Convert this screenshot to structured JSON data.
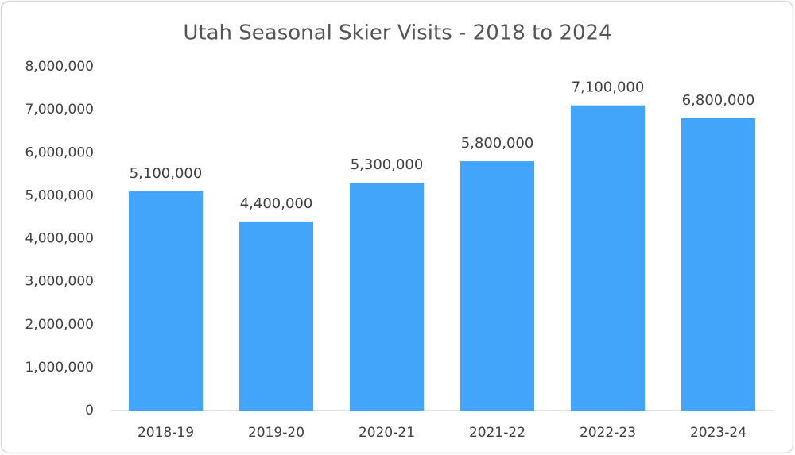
{
  "chart_data": {
    "type": "bar",
    "title": "Utah Seasonal Skier Visits - 2018 to 2024",
    "categories": [
      "2018-19",
      "2019-20",
      "2020-21",
      "2021-22",
      "2022-23",
      "2023-24"
    ],
    "values": [
      5100000,
      4400000,
      5300000,
      5800000,
      7100000,
      6800000
    ],
    "value_labels": [
      "5,100,000",
      "4,400,000",
      "5,300,000",
      "5,800,000",
      "7,100,000",
      "6,800,000"
    ],
    "color": "#42a5f9",
    "ylim": [
      0,
      8000000
    ],
    "yticks": [
      0,
      {
        "value": 1000000,
        "label": "1,000,000"
      },
      {
        "value": 2000000,
        "label": "2,000,000"
      },
      {
        "value": 3000000,
        "label": "3,000,000"
      },
      {
        "value": 4000000,
        "label": "4,000,000"
      },
      {
        "value": 5000000,
        "label": "5,000,000"
      },
      {
        "value": 6000000,
        "label": "6,000,000"
      },
      {
        "value": 7000000,
        "label": "7,000,000"
      },
      {
        "value": 8000000,
        "label": "8,000,000"
      }
    ],
    "grid": false
  }
}
